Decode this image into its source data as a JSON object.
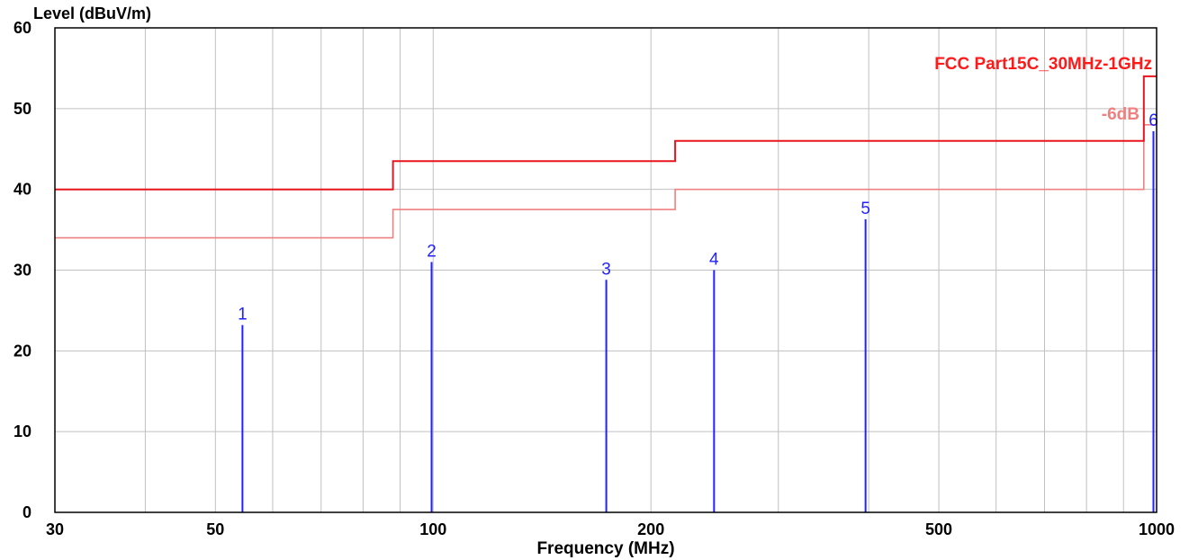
{
  "chart_data": {
    "type": "line",
    "ylabel": "Level (dBuV/m)",
    "xlabel": "Frequency (MHz)",
    "xscale": "log",
    "xlim": [
      30,
      1000
    ],
    "ylim": [
      0,
      60
    ],
    "grid": true,
    "x_ticks": [
      30,
      50,
      100,
      200,
      500,
      1000
    ],
    "x_minor_grid": [
      40,
      60,
      70,
      80,
      90,
      300,
      400,
      600,
      700,
      800,
      900
    ],
    "y_ticks": [
      0,
      10,
      20,
      30,
      40,
      50,
      60
    ],
    "limit_line": {
      "name": "FCC Part15C_30MHz-1GHz",
      "color": "#e8141e",
      "points": [
        [
          30,
          40
        ],
        [
          88,
          40
        ],
        [
          88,
          43.5
        ],
        [
          216,
          43.5
        ],
        [
          216,
          46
        ],
        [
          960,
          46
        ],
        [
          960,
          54
        ],
        [
          1000,
          54
        ]
      ]
    },
    "margin_line": {
      "name": "-6dB",
      "color": "#f08080",
      "points": [
        [
          30,
          34
        ],
        [
          88,
          34
        ],
        [
          88,
          37.5
        ],
        [
          216,
          37.5
        ],
        [
          216,
          40
        ],
        [
          960,
          40
        ],
        [
          960,
          48
        ],
        [
          1000,
          48
        ]
      ]
    },
    "markers": [
      {
        "label": "1",
        "freq": 54.5,
        "level": 23.2
      },
      {
        "label": "2",
        "freq": 99.5,
        "level": 31.0
      },
      {
        "label": "3",
        "freq": 173.5,
        "level": 28.8
      },
      {
        "label": "4",
        "freq": 244.5,
        "level": 30.0
      },
      {
        "label": "5",
        "freq": 396.0,
        "level": 36.3
      },
      {
        "label": "6",
        "freq": 990.0,
        "level": 47.2
      }
    ],
    "marker_color": "#2222ff"
  }
}
